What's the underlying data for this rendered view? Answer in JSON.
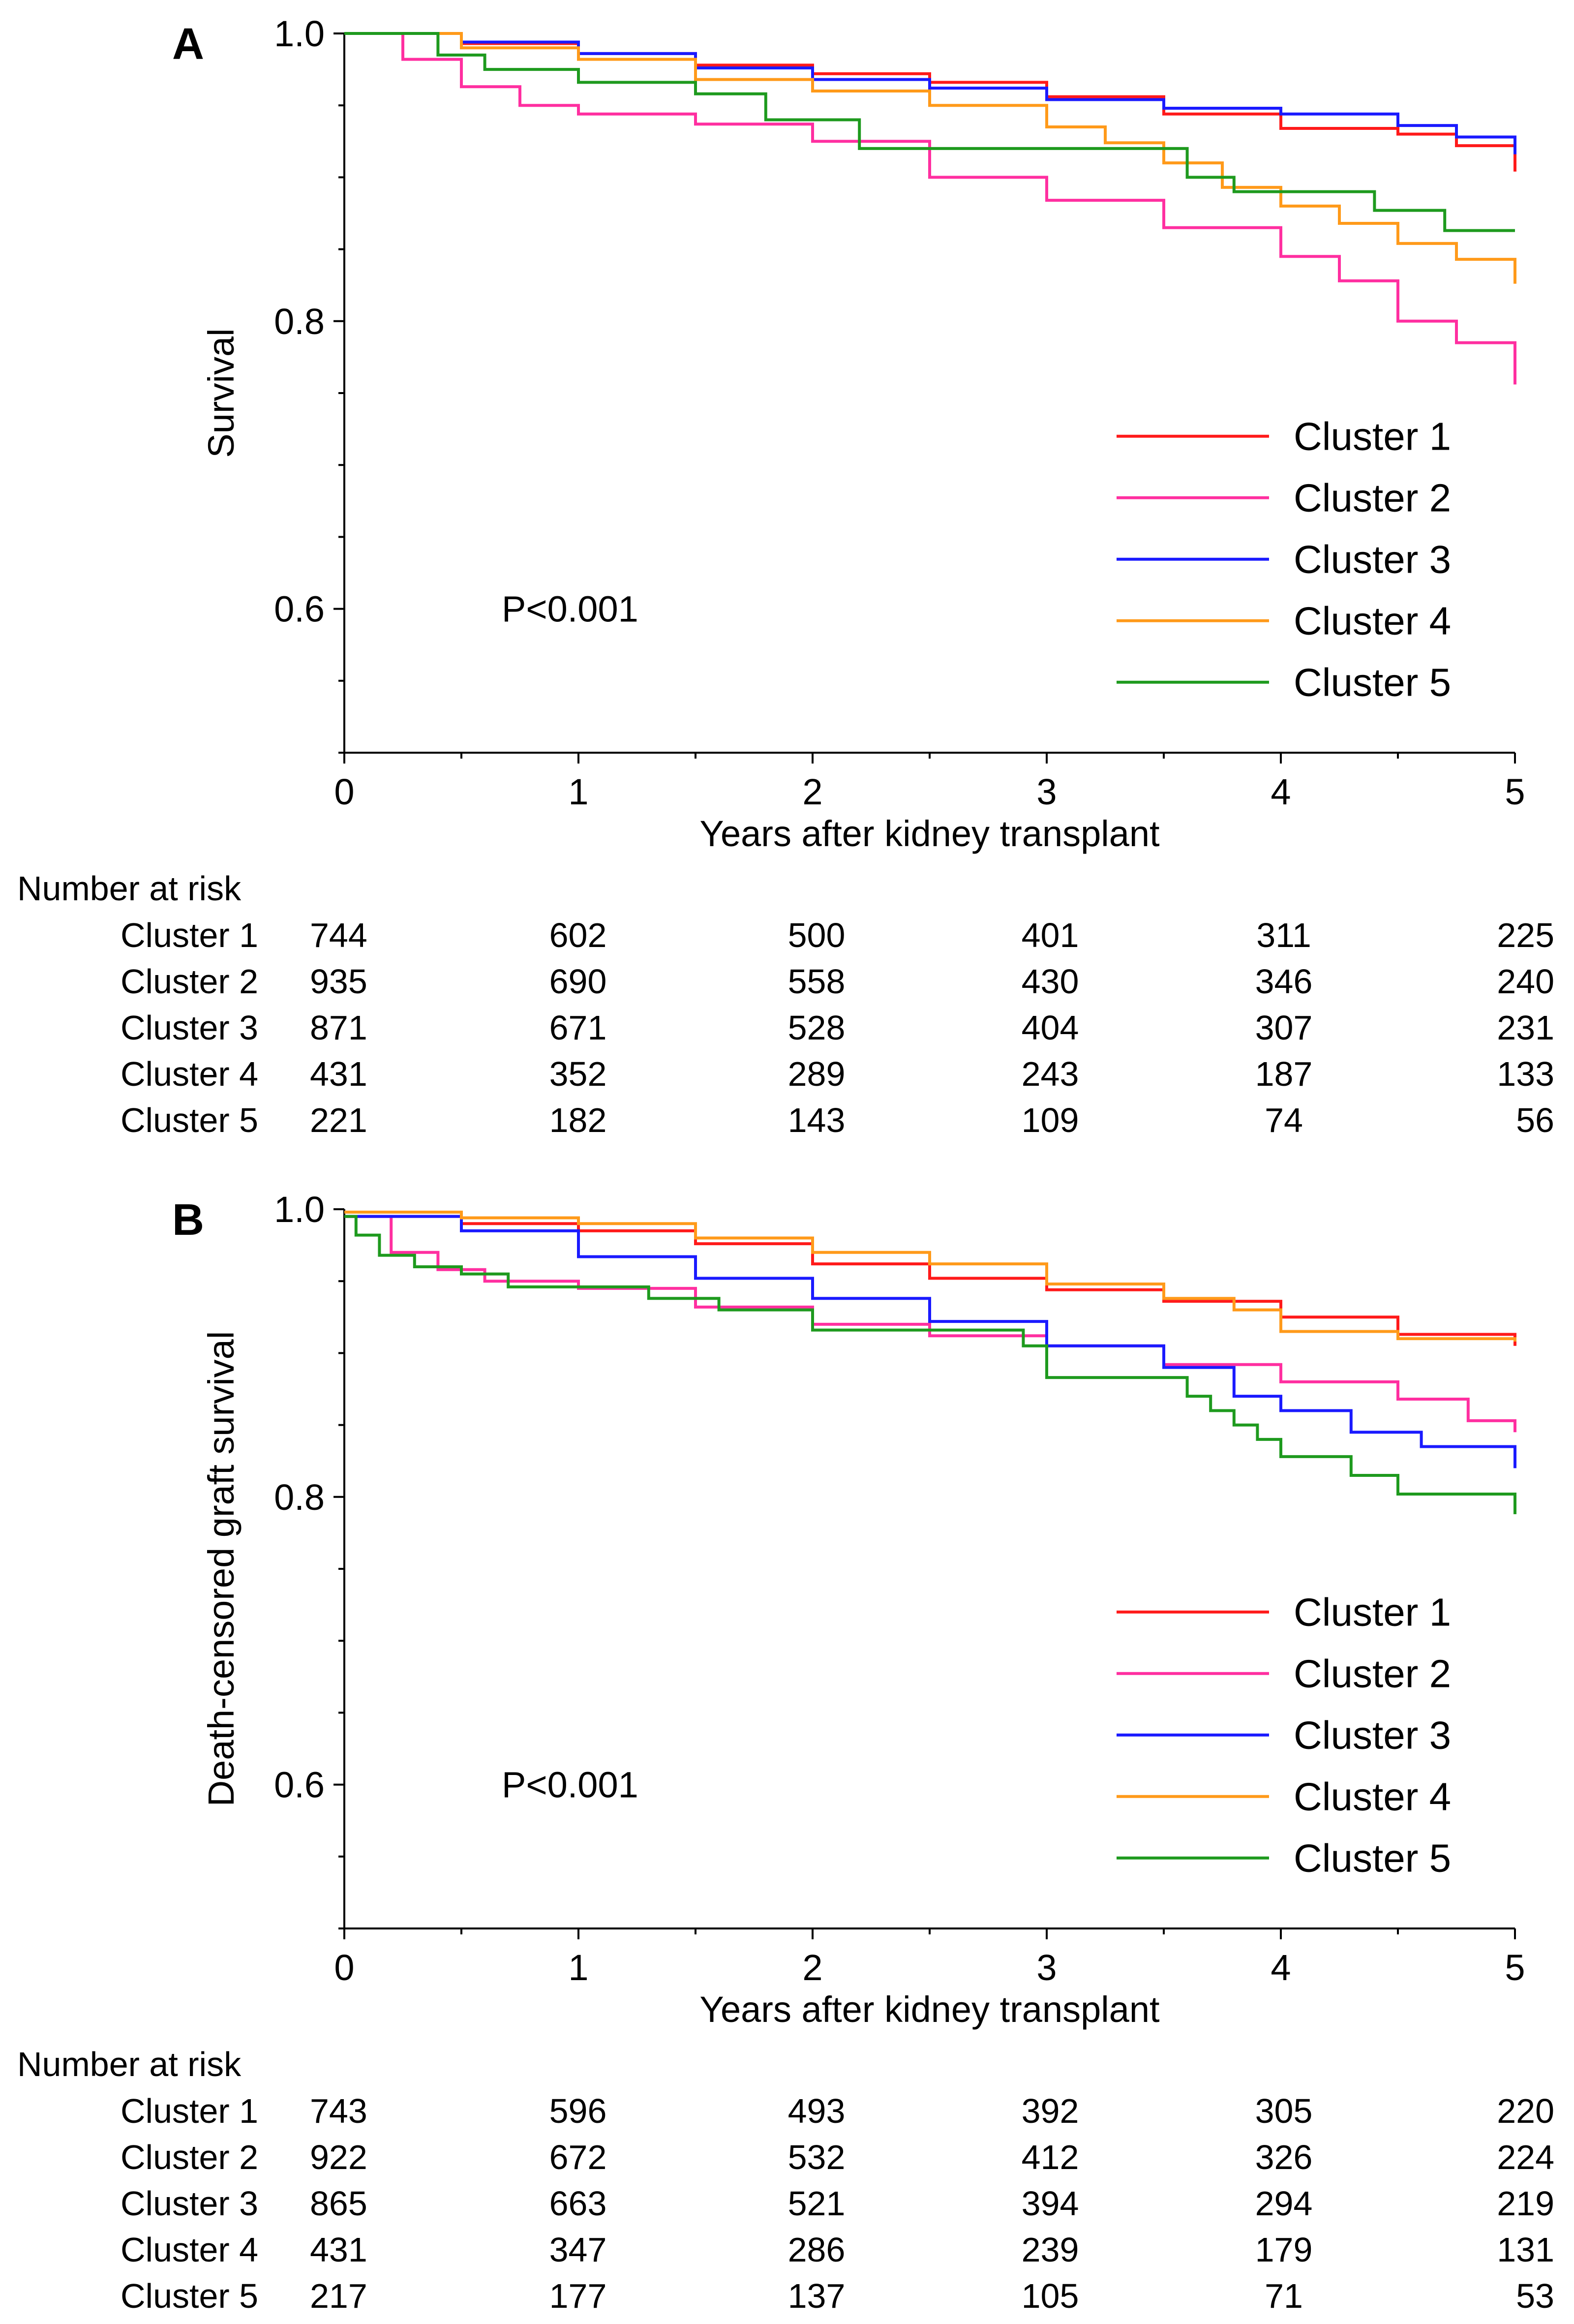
{
  "colors": {
    "Cluster 1": "#ff1a1a",
    "Cluster 2": "#ff2fa0",
    "Cluster 3": "#1a1aff",
    "Cluster 4": "#ff9a1a",
    "Cluster 5": "#1e9a1e"
  },
  "chart_data": [
    {
      "type": "line",
      "style": "step",
      "panel_label": "A",
      "title": "",
      "xlabel": "Years after kidney transplant",
      "ylabel": "Survival",
      "xlim": [
        0,
        5
      ],
      "ylim": [
        0.5,
        1.0
      ],
      "x_ticks": [
        "0",
        "1",
        "2",
        "3",
        "4",
        "5"
      ],
      "y_ticks": [
        "1.0",
        "0.8",
        "0.6"
      ],
      "annotation": "P<0.001",
      "legend_position": "bottom-right",
      "grid": false,
      "series": [
        {
          "name": "Cluster 1",
          "x": [
            0,
            0.5,
            1,
            1.5,
            2,
            2.5,
            3,
            3.5,
            4,
            4.5,
            4.75,
            5
          ],
          "y": [
            1.0,
            0.993,
            0.986,
            0.978,
            0.972,
            0.966,
            0.956,
            0.944,
            0.934,
            0.93,
            0.922,
            0.904
          ]
        },
        {
          "name": "Cluster 2",
          "x": [
            0,
            0.25,
            0.5,
            0.75,
            1,
            1.5,
            2,
            2.5,
            3,
            3.5,
            4,
            4.25,
            4.5,
            4.75,
            5
          ],
          "y": [
            1.0,
            0.982,
            0.963,
            0.95,
            0.944,
            0.937,
            0.925,
            0.9,
            0.884,
            0.865,
            0.845,
            0.828,
            0.8,
            0.785,
            0.756
          ]
        },
        {
          "name": "Cluster 3",
          "x": [
            0,
            0.5,
            1,
            1.5,
            2,
            2.5,
            3,
            3.5,
            4,
            4.5,
            4.75,
            5
          ],
          "y": [
            1.0,
            0.994,
            0.986,
            0.976,
            0.968,
            0.962,
            0.954,
            0.948,
            0.944,
            0.936,
            0.928,
            0.916
          ]
        },
        {
          "name": "Cluster 4",
          "x": [
            0,
            0.5,
            1,
            1.5,
            2,
            2.5,
            3,
            3.25,
            3.5,
            3.75,
            4,
            4.25,
            4.5,
            4.75,
            5
          ],
          "y": [
            1.0,
            0.99,
            0.982,
            0.968,
            0.96,
            0.95,
            0.935,
            0.924,
            0.91,
            0.893,
            0.88,
            0.868,
            0.854,
            0.843,
            0.826
          ]
        },
        {
          "name": "Cluster 5",
          "x": [
            0,
            0.4,
            0.6,
            1,
            1.5,
            1.8,
            2.2,
            2.6,
            3,
            3.6,
            3.8,
            4.4,
            4.7,
            5
          ],
          "y": [
            1.0,
            0.985,
            0.975,
            0.966,
            0.958,
            0.94,
            0.92,
            0.92,
            0.92,
            0.9,
            0.89,
            0.877,
            0.863,
            0.863
          ]
        }
      ],
      "risk_table": {
        "heading": "Number at risk",
        "rows": [
          {
            "label": "Cluster 1",
            "values": [
              "744",
              "602",
              "500",
              "401",
              "311",
              "225"
            ]
          },
          {
            "label": "Cluster 2",
            "values": [
              "935",
              "690",
              "558",
              "430",
              "346",
              "240"
            ]
          },
          {
            "label": "Cluster 3",
            "values": [
              "871",
              "671",
              "528",
              "404",
              "307",
              "231"
            ]
          },
          {
            "label": "Cluster 4",
            "values": [
              "431",
              "352",
              "289",
              "243",
              "187",
              "133"
            ]
          },
          {
            "label": "Cluster 5",
            "values": [
              "221",
              "182",
              "143",
              "109",
              "74",
              "56"
            ]
          }
        ]
      }
    },
    {
      "type": "line",
      "style": "step",
      "panel_label": "B",
      "title": "",
      "xlabel": "Years after kidney transplant",
      "ylabel": "Death-censored graft survival",
      "xlim": [
        0,
        5
      ],
      "ylim": [
        0.5,
        1.0
      ],
      "x_ticks": [
        "0",
        "1",
        "2",
        "3",
        "4",
        "5"
      ],
      "y_ticks": [
        "1.0",
        "0.8",
        "0.6"
      ],
      "annotation": "P<0.001",
      "legend_position": "bottom-right",
      "grid": false,
      "series": [
        {
          "name": "Cluster 1",
          "x": [
            0,
            0.5,
            1,
            1.5,
            2,
            2.5,
            3,
            3.5,
            4,
            4.5,
            5
          ],
          "y": [
            0.995,
            0.99,
            0.985,
            0.976,
            0.962,
            0.952,
            0.944,
            0.936,
            0.925,
            0.913,
            0.905
          ]
        },
        {
          "name": "Cluster 2",
          "x": [
            0,
            0.2,
            0.4,
            0.6,
            1,
            1.5,
            2,
            2.5,
            3,
            3.5,
            4,
            4.5,
            4.8,
            5
          ],
          "y": [
            0.995,
            0.97,
            0.958,
            0.95,
            0.945,
            0.932,
            0.92,
            0.912,
            0.905,
            0.892,
            0.88,
            0.868,
            0.853,
            0.845
          ]
        },
        {
          "name": "Cluster 3",
          "x": [
            0,
            0.5,
            1,
            1.5,
            2,
            2.5,
            3,
            3.5,
            3.8,
            4,
            4.3,
            4.6,
            5
          ],
          "y": [
            0.995,
            0.985,
            0.967,
            0.952,
            0.938,
            0.922,
            0.905,
            0.89,
            0.87,
            0.86,
            0.845,
            0.835,
            0.82
          ]
        },
        {
          "name": "Cluster 4",
          "x": [
            0,
            0.5,
            1,
            1.5,
            2,
            2.5,
            3,
            3.5,
            3.8,
            4,
            4.5,
            5
          ],
          "y": [
            0.998,
            0.994,
            0.99,
            0.98,
            0.97,
            0.962,
            0.948,
            0.938,
            0.93,
            0.915,
            0.91,
            0.908
          ]
        },
        {
          "name": "Cluster 5",
          "x": [
            0,
            0.05,
            0.15,
            0.3,
            0.5,
            0.7,
            1,
            1.3,
            1.6,
            2,
            2.3,
            2.6,
            2.9,
            3,
            3.5,
            3.6,
            3.7,
            3.8,
            3.9,
            4.0,
            4.3,
            4.5,
            5
          ],
          "y": [
            0.995,
            0.982,
            0.968,
            0.96,
            0.955,
            0.946,
            0.946,
            0.938,
            0.93,
            0.916,
            0.916,
            0.916,
            0.905,
            0.883,
            0.883,
            0.87,
            0.86,
            0.85,
            0.84,
            0.828,
            0.815,
            0.802,
            0.788
          ]
        }
      ],
      "risk_table": {
        "heading": "Number at risk",
        "rows": [
          {
            "label": "Cluster 1",
            "values": [
              "743",
              "596",
              "493",
              "392",
              "305",
              "220"
            ]
          },
          {
            "label": "Cluster 2",
            "values": [
              "922",
              "672",
              "532",
              "412",
              "326",
              "224"
            ]
          },
          {
            "label": "Cluster 3",
            "values": [
              "865",
              "663",
              "521",
              "394",
              "294",
              "219"
            ]
          },
          {
            "label": "Cluster 4",
            "values": [
              "431",
              "347",
              "286",
              "239",
              "179",
              "131"
            ]
          },
          {
            "label": "Cluster 5",
            "values": [
              "217",
              "177",
              "137",
              "105",
              "71",
              "53"
            ]
          }
        ]
      }
    }
  ]
}
